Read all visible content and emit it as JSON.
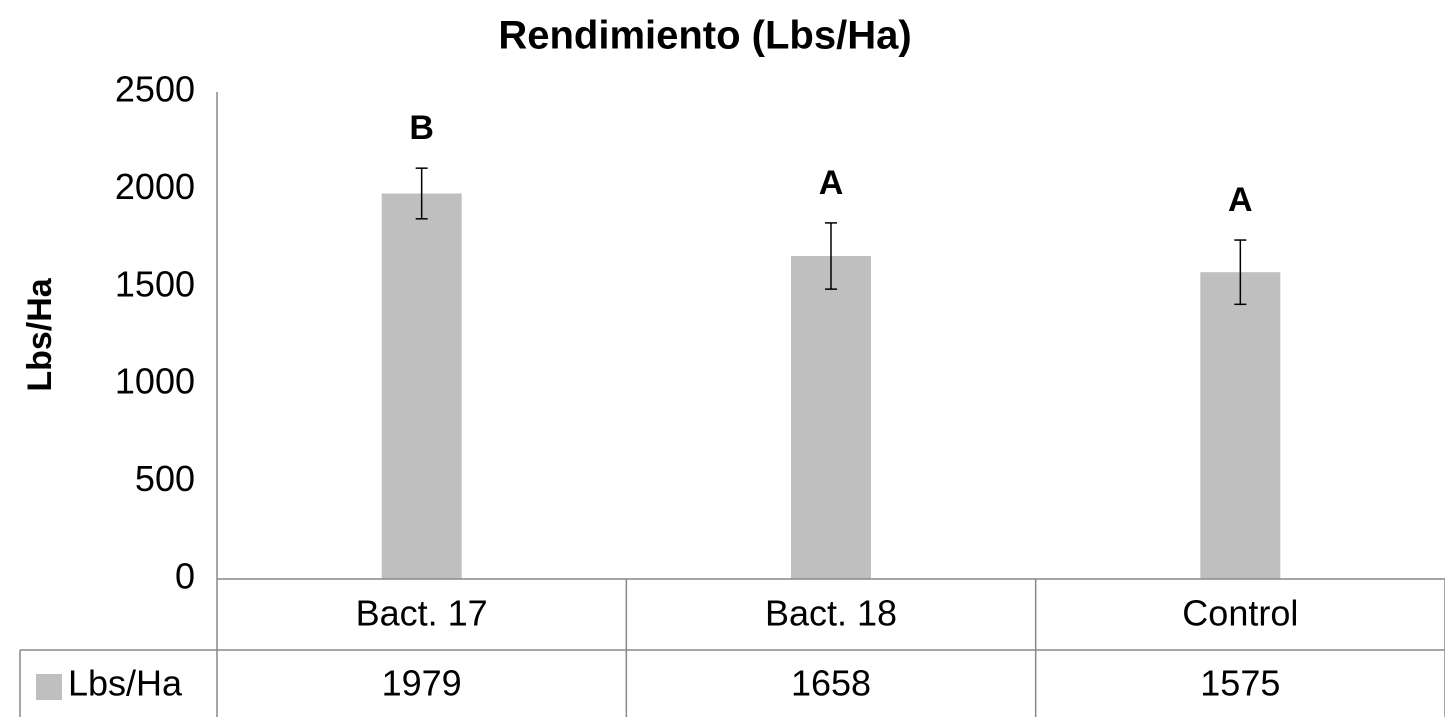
{
  "chart_data": {
    "type": "bar",
    "title": "Rendimiento (Lbs/Ha)",
    "ylabel": "Lbs/Ha",
    "categories": [
      "Bact. 17",
      "Bact. 18",
      "Control"
    ],
    "series": [
      {
        "name": "Lbs/Ha",
        "color": "#bfbfbf",
        "values": [
          1979,
          1658,
          1575
        ],
        "errors": [
          130,
          170,
          165
        ]
      }
    ],
    "annotations": [
      "B",
      "A",
      "A"
    ],
    "ylim": [
      0,
      2500
    ],
    "yticks": [
      0,
      500,
      1000,
      1500,
      2000,
      2500
    ],
    "grid": false,
    "data_table": true
  }
}
